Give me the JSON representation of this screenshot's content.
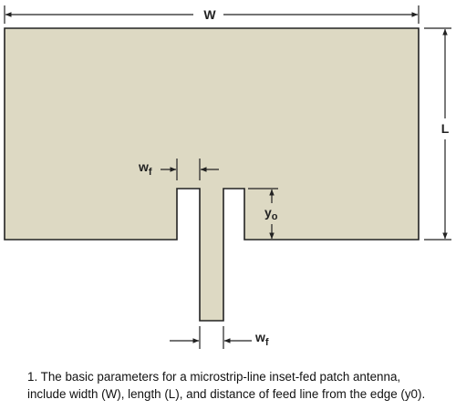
{
  "diagram": {
    "patch_color": "#ddd9c3",
    "outline_color": "#222222",
    "labels": {
      "width": "W",
      "length": "L",
      "feed_width_main": "w",
      "feed_width_sub": "f",
      "inset_main": "y",
      "inset_sub": "o"
    }
  },
  "caption": {
    "line1": "1. The basic parameters for a microstrip-line inset-fed patch antenna,",
    "line2": "include width (W), length (L), and distance of feed line from the edge (y0)."
  }
}
